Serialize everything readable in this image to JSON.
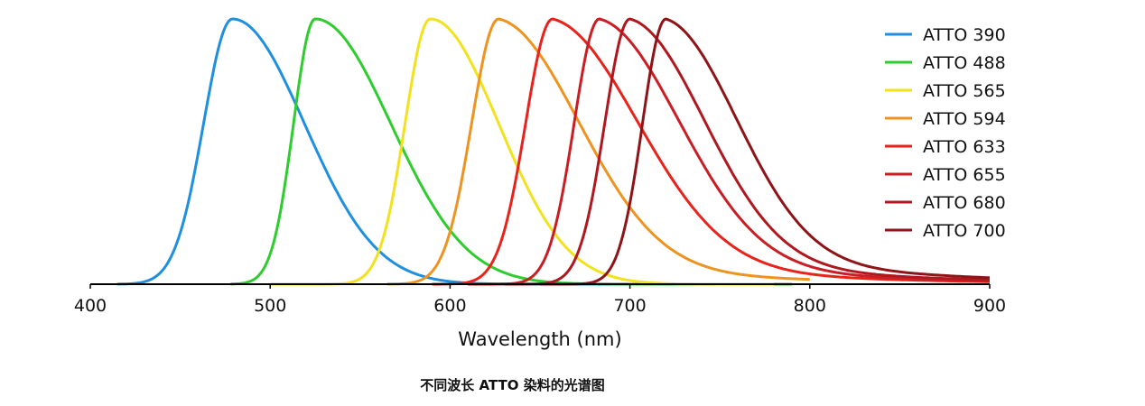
{
  "caption": "不同波长 ATTO 染料的光谱图",
  "chart_data": {
    "type": "line",
    "xlabel": "Wavelength (nm)",
    "ylabel": "",
    "xlim": [
      400,
      900
    ],
    "ylim": [
      0,
      1
    ],
    "xticks": [
      "400",
      "500",
      "600",
      "700",
      "800",
      "900"
    ],
    "grid": false,
    "legend_position": "top-right",
    "series": [
      {
        "name": "ATTO 390",
        "color": "#1f8fe0",
        "peak": 479,
        "start": 415,
        "end": 740,
        "sigma_left": 16,
        "sigma_right": 40,
        "shoulder": 0
      },
      {
        "name": "ATTO 488",
        "color": "#2ecc2e",
        "peak": 525,
        "start": 478,
        "end": 790,
        "sigma_left": 12,
        "sigma_right": 42,
        "shoulder": 0
      },
      {
        "name": "ATTO 565",
        "color": "#f2e21e",
        "peak": 589,
        "start": 500,
        "end": 780,
        "sigma_left": 14,
        "sigma_right": 38,
        "shoulder": 0
      },
      {
        "name": "ATTO 594",
        "color": "#ef9320",
        "peak": 627,
        "start": 565,
        "end": 800,
        "sigma_left": 15,
        "sigma_right": 45,
        "shoulder": 0.12
      },
      {
        "name": "ATTO 633",
        "color": "#e8231c",
        "peak": 657,
        "start": 590,
        "end": 900,
        "sigma_left": 15,
        "sigma_right": 48,
        "shoulder": 0.14
      },
      {
        "name": "ATTO 655",
        "color": "#c81e24",
        "peak": 683,
        "start": 610,
        "end": 900,
        "sigma_left": 14,
        "sigma_right": 45,
        "shoulder": 0.14
      },
      {
        "name": "ATTO 680",
        "color": "#b01820",
        "peak": 700,
        "start": 630,
        "end": 900,
        "sigma_left": 14,
        "sigma_right": 42,
        "shoulder": 0.15
      },
      {
        "name": "ATTO 700",
        "color": "#8e1418",
        "peak": 720,
        "start": 650,
        "end": 900,
        "sigma_left": 13,
        "sigma_right": 40,
        "shoulder": 0.18
      }
    ]
  }
}
